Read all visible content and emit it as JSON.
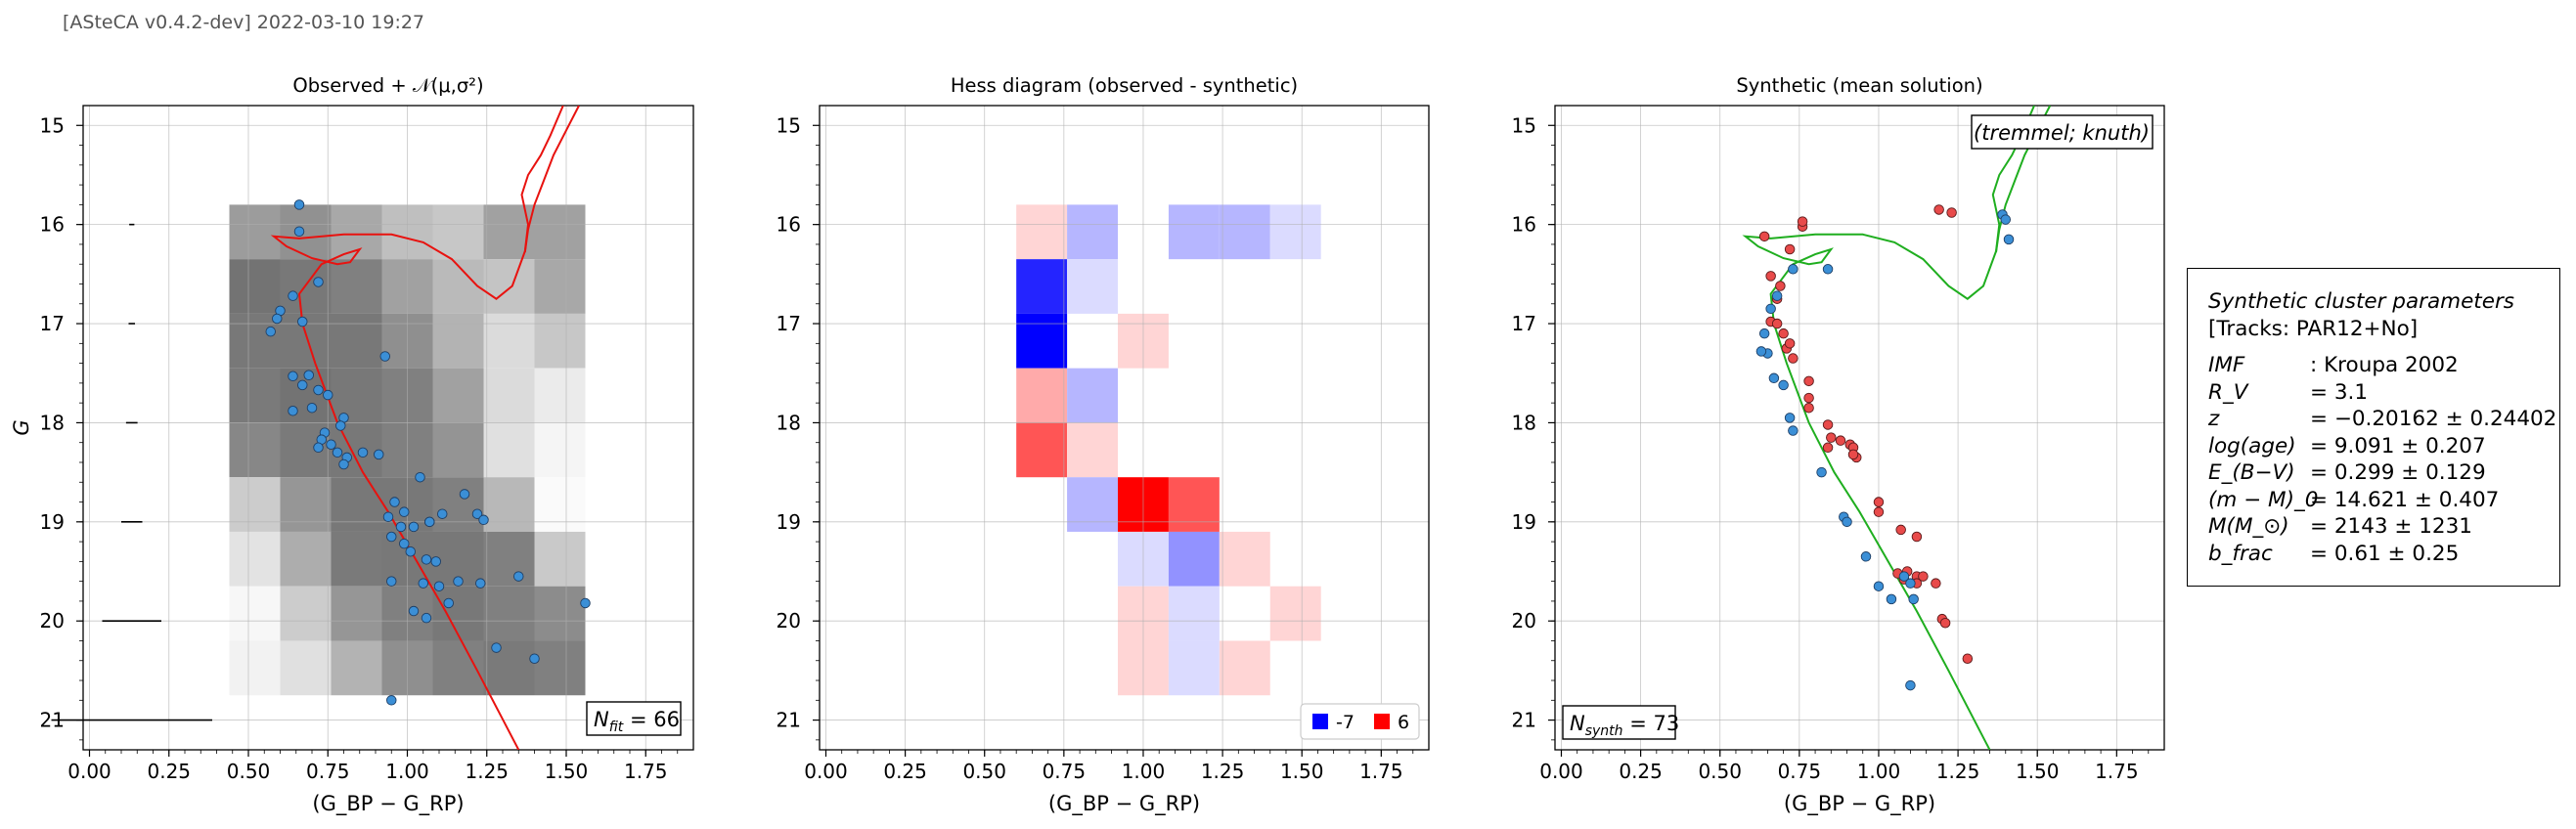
{
  "header": {
    "stamp": "[ASteCA v0.4.2-dev] 2022-03-10 19:27"
  },
  "chart_data": [
    {
      "type": "heatmap",
      "title": "Observed + 𝒩(μ,σ²)",
      "xlabel": "(G_BP − G_RP)",
      "ylabel": "G",
      "xlim": [
        -0.02,
        1.9
      ],
      "ylim": [
        21.3,
        14.8
      ],
      "xticks": [
        "0.00",
        "0.25",
        "0.50",
        "0.75",
        "1.00",
        "1.25",
        "1.50",
        "1.75"
      ],
      "yticks": [
        "15",
        "16",
        "17",
        "18",
        "19",
        "20",
        "21"
      ],
      "grid": true,
      "hess_x_edges": [
        0.44,
        0.6,
        0.76,
        0.92,
        1.08,
        1.24,
        1.4,
        1.56
      ],
      "hess_y_edges": [
        15.8,
        16.35,
        16.9,
        17.45,
        18.0,
        18.55,
        19.1,
        19.65,
        20.2,
        20.75
      ],
      "hess_gray": [
        [
          0.61,
          0.57,
          0.66,
          0.75,
          0.78,
          0.63,
          0.63
        ],
        [
          0.45,
          0.47,
          0.5,
          0.63,
          0.73,
          0.77,
          0.66
        ],
        [
          0.47,
          0.47,
          0.47,
          0.56,
          0.7,
          0.86,
          0.78
        ],
        [
          0.48,
          0.45,
          0.47,
          0.5,
          0.63,
          0.86,
          0.92
        ],
        [
          0.53,
          0.48,
          0.47,
          0.5,
          0.58,
          0.88,
          0.96
        ],
        [
          0.8,
          0.59,
          0.47,
          0.47,
          0.5,
          0.72,
          0.98
        ],
        [
          0.89,
          0.68,
          0.48,
          0.47,
          0.47,
          0.5,
          0.79
        ],
        [
          0.97,
          0.8,
          0.59,
          0.5,
          0.47,
          0.5,
          0.55
        ],
        [
          0.95,
          0.88,
          0.7,
          0.56,
          0.5,
          0.48,
          0.5
        ]
      ],
      "error_bars": [
        {
          "y": 16.0,
          "half_width": 0.005
        },
        {
          "y": 17.0,
          "half_width": 0.007
        },
        {
          "y": 18.0,
          "half_width": 0.015
        },
        {
          "y": 19.0,
          "half_width": 0.03
        },
        {
          "y": 20.0,
          "half_width": 0.09
        },
        {
          "y": 21.0,
          "half_width": 0.25
        }
      ],
      "points": [
        [
          0.66,
          15.8
        ],
        [
          0.66,
          16.07
        ],
        [
          0.57,
          17.08
        ],
        [
          0.6,
          16.87
        ],
        [
          0.59,
          16.95
        ],
        [
          0.72,
          16.58
        ],
        [
          0.64,
          16.72
        ],
        [
          0.67,
          16.98
        ],
        [
          0.64,
          17.53
        ],
        [
          0.69,
          17.52
        ],
        [
          0.67,
          17.62
        ],
        [
          0.72,
          17.67
        ],
        [
          0.75,
          17.72
        ],
        [
          0.7,
          17.85
        ],
        [
          0.64,
          17.88
        ],
        [
          0.8,
          17.95
        ],
        [
          0.79,
          18.03
        ],
        [
          0.74,
          18.1
        ],
        [
          0.73,
          18.17
        ],
        [
          0.76,
          18.22
        ],
        [
          0.72,
          18.25
        ],
        [
          0.78,
          18.3
        ],
        [
          0.81,
          18.35
        ],
        [
          0.8,
          18.42
        ],
        [
          0.86,
          18.3
        ],
        [
          0.91,
          18.32
        ],
        [
          0.93,
          17.33
        ],
        [
          1.04,
          18.55
        ],
        [
          0.94,
          18.95
        ],
        [
          0.96,
          18.8
        ],
        [
          0.99,
          18.9
        ],
        [
          0.98,
          19.05
        ],
        [
          0.95,
          19.15
        ],
        [
          0.99,
          19.22
        ],
        [
          1.07,
          19.0
        ],
        [
          1.11,
          18.92
        ],
        [
          1.18,
          18.72
        ],
        [
          1.22,
          18.92
        ],
        [
          1.24,
          18.98
        ],
        [
          1.01,
          19.3
        ],
        [
          0.95,
          19.6
        ],
        [
          1.09,
          19.4
        ],
        [
          1.06,
          19.38
        ],
        [
          1.05,
          19.62
        ],
        [
          1.1,
          19.65
        ],
        [
          1.16,
          19.6
        ],
        [
          1.23,
          19.62
        ],
        [
          1.02,
          19.9
        ],
        [
          1.06,
          19.97
        ],
        [
          1.13,
          19.82
        ],
        [
          1.35,
          19.55
        ],
        [
          1.28,
          20.27
        ],
        [
          1.4,
          20.38
        ],
        [
          1.56,
          19.82
        ],
        [
          0.95,
          20.8
        ],
        [
          1.07,
          19.0
        ],
        [
          1.02,
          19.05
        ]
      ],
      "points_color": "#3b8fd6",
      "isochrone": [
        [
          1.35,
          21.3
        ],
        [
          1.22,
          20.5
        ],
        [
          1.12,
          19.9
        ],
        [
          1.03,
          19.4
        ],
        [
          0.94,
          18.9
        ],
        [
          0.86,
          18.5
        ],
        [
          0.78,
          18.0
        ],
        [
          0.71,
          17.4
        ],
        [
          0.67,
          17.0
        ],
        [
          0.66,
          16.7
        ],
        [
          0.73,
          16.4
        ],
        [
          0.8,
          16.3
        ],
        [
          0.85,
          16.25
        ],
        [
          0.82,
          16.38
        ],
        [
          0.78,
          16.4
        ],
        [
          0.7,
          16.34
        ],
        [
          0.62,
          16.22
        ],
        [
          0.58,
          16.12
        ],
        [
          0.66,
          16.14
        ],
        [
          0.8,
          16.1
        ],
        [
          0.95,
          16.1
        ],
        [
          1.05,
          16.18
        ],
        [
          1.14,
          16.35
        ],
        [
          1.22,
          16.62
        ],
        [
          1.28,
          16.75
        ],
        [
          1.33,
          16.62
        ],
        [
          1.37,
          16.27
        ],
        [
          1.38,
          16.0
        ],
        [
          1.36,
          15.7
        ],
        [
          1.38,
          15.5
        ],
        [
          1.42,
          15.3
        ],
        [
          1.45,
          15.1
        ],
        [
          1.49,
          14.8
        ]
      ],
      "isochrone2": [
        [
          1.37,
          16.28
        ],
        [
          1.38,
          16.05
        ],
        [
          1.4,
          15.8
        ],
        [
          1.43,
          15.55
        ],
        [
          1.46,
          15.3
        ],
        [
          1.5,
          15.05
        ],
        [
          1.54,
          14.8
        ]
      ],
      "isochrone_color": "#e8120f",
      "annotation": "N_fit = 66",
      "annotation_parts": [
        "N",
        "fit",
        " = 66"
      ]
    },
    {
      "type": "heatmap",
      "title": "Hess diagram (observed - synthetic)",
      "xlabel": "(G_BP − G_RP)",
      "xlim": [
        -0.02,
        1.9
      ],
      "ylim": [
        21.3,
        14.8
      ],
      "xticks": [
        "0.00",
        "0.25",
        "0.50",
        "0.75",
        "1.00",
        "1.25",
        "1.50",
        "1.75"
      ],
      "yticks": [
        "15",
        "16",
        "17",
        "18",
        "19",
        "20",
        "21"
      ],
      "grid": true,
      "x_edges": [
        0.6,
        0.76,
        0.92,
        1.08,
        1.24,
        1.4,
        1.56
      ],
      "y_edges": [
        15.8,
        16.35,
        16.9,
        17.45,
        18.0,
        18.55,
        19.1,
        19.65,
        20.2,
        20.75
      ],
      "values": [
        [
          1,
          -2,
          0,
          -2,
          -2,
          -1
        ],
        [
          -6,
          -1,
          0,
          0,
          0,
          0
        ],
        [
          -7,
          0,
          1,
          0,
          0,
          0
        ],
        [
          2,
          -2,
          0,
          0,
          0,
          0
        ],
        [
          4,
          1,
          0,
          0,
          0,
          0
        ],
        [
          0,
          -2,
          6,
          4,
          0,
          0
        ],
        [
          0,
          0,
          -1,
          -3,
          1,
          0
        ],
        [
          0,
          0,
          1,
          -1,
          0,
          1
        ],
        [
          0,
          0,
          1,
          -1,
          1,
          0
        ]
      ],
      "vmin": -7,
      "vmax": 6,
      "legend": [
        {
          "label": "-7",
          "color": "#0000ff"
        },
        {
          "label": "6",
          "color": "#ff0000"
        }
      ]
    },
    {
      "type": "scatter",
      "title": "Synthetic (mean solution)",
      "xlabel": "(G_BP − G_RP)",
      "xlim": [
        -0.02,
        1.9
      ],
      "ylim": [
        21.3,
        14.8
      ],
      "xticks": [
        "0.00",
        "0.25",
        "0.50",
        "0.75",
        "1.00",
        "1.25",
        "1.50",
        "1.75"
      ],
      "yticks": [
        "15",
        "16",
        "17",
        "18",
        "19",
        "20",
        "21"
      ],
      "grid": true,
      "tag": "(tremmel; knuth)",
      "single_stars": [
        [
          0.73,
          16.45
        ],
        [
          0.84,
          16.45
        ],
        [
          0.68,
          16.72
        ],
        [
          0.66,
          16.85
        ],
        [
          0.64,
          17.1
        ],
        [
          0.65,
          17.3
        ],
        [
          0.63,
          17.28
        ],
        [
          0.67,
          17.55
        ],
        [
          0.7,
          17.62
        ],
        [
          0.72,
          17.95
        ],
        [
          0.73,
          18.08
        ],
        [
          0.82,
          18.5
        ],
        [
          0.89,
          18.95
        ],
        [
          0.9,
          19.0
        ],
        [
          0.96,
          19.35
        ],
        [
          1.0,
          19.65
        ],
        [
          1.04,
          19.78
        ],
        [
          1.1,
          19.62
        ],
        [
          1.11,
          19.78
        ],
        [
          1.08,
          19.55
        ],
        [
          1.1,
          20.65
        ],
        [
          1.39,
          15.9
        ],
        [
          1.4,
          15.95
        ],
        [
          1.41,
          16.15
        ]
      ],
      "binary_stars": [
        [
          0.76,
          16.02
        ],
        [
          0.76,
          15.97
        ],
        [
          0.64,
          16.12
        ],
        [
          0.72,
          16.25
        ],
        [
          0.66,
          16.52
        ],
        [
          0.69,
          16.62
        ],
        [
          0.68,
          16.75
        ],
        [
          0.66,
          16.98
        ],
        [
          0.68,
          17.0
        ],
        [
          0.7,
          17.1
        ],
        [
          0.71,
          17.25
        ],
        [
          0.72,
          17.2
        ],
        [
          0.73,
          17.35
        ],
        [
          0.78,
          17.58
        ],
        [
          0.78,
          17.75
        ],
        [
          0.78,
          17.85
        ],
        [
          0.84,
          18.02
        ],
        [
          0.85,
          18.15
        ],
        [
          0.84,
          18.25
        ],
        [
          0.88,
          18.18
        ],
        [
          0.91,
          18.22
        ],
        [
          0.92,
          18.25
        ],
        [
          0.93,
          18.35
        ],
        [
          0.92,
          18.32
        ],
        [
          1.0,
          18.8
        ],
        [
          1.0,
          18.9
        ],
        [
          1.07,
          19.08
        ],
        [
          1.12,
          19.15
        ],
        [
          1.06,
          19.52
        ],
        [
          1.09,
          19.5
        ],
        [
          1.12,
          19.55
        ],
        [
          1.14,
          19.55
        ],
        [
          1.12,
          19.62
        ],
        [
          1.08,
          19.58
        ],
        [
          1.18,
          19.62
        ],
        [
          1.2,
          19.98
        ],
        [
          1.21,
          20.02
        ],
        [
          1.19,
          15.85
        ],
        [
          1.23,
          15.88
        ],
        [
          1.28,
          20.38
        ]
      ],
      "single_color": "#3b8fd6",
      "binary_color": "#e84a4a",
      "isochrone": [
        [
          1.35,
          21.3
        ],
        [
          1.22,
          20.5
        ],
        [
          1.12,
          19.9
        ],
        [
          1.03,
          19.4
        ],
        [
          0.94,
          18.9
        ],
        [
          0.86,
          18.5
        ],
        [
          0.78,
          18.0
        ],
        [
          0.71,
          17.4
        ],
        [
          0.67,
          17.0
        ],
        [
          0.66,
          16.7
        ],
        [
          0.73,
          16.4
        ],
        [
          0.8,
          16.3
        ],
        [
          0.85,
          16.25
        ],
        [
          0.82,
          16.38
        ],
        [
          0.78,
          16.4
        ],
        [
          0.7,
          16.34
        ],
        [
          0.62,
          16.22
        ],
        [
          0.58,
          16.12
        ],
        [
          0.66,
          16.14
        ],
        [
          0.8,
          16.1
        ],
        [
          0.95,
          16.1
        ],
        [
          1.05,
          16.18
        ],
        [
          1.14,
          16.35
        ],
        [
          1.22,
          16.62
        ],
        [
          1.28,
          16.75
        ],
        [
          1.33,
          16.62
        ],
        [
          1.37,
          16.27
        ],
        [
          1.38,
          16.0
        ],
        [
          1.36,
          15.7
        ],
        [
          1.38,
          15.5
        ],
        [
          1.42,
          15.3
        ],
        [
          1.45,
          15.1
        ],
        [
          1.49,
          14.8
        ]
      ],
      "isochrone2": [
        [
          1.37,
          16.28
        ],
        [
          1.38,
          16.05
        ],
        [
          1.4,
          15.8
        ],
        [
          1.43,
          15.55
        ],
        [
          1.46,
          15.3
        ],
        [
          1.5,
          15.05
        ],
        [
          1.54,
          14.8
        ]
      ],
      "isochrone_color": "#1fae1f",
      "annotation": "N_synth = 73",
      "annotation_parts": [
        "N",
        "synth",
        " = 73"
      ]
    }
  ],
  "params": {
    "title": "Synthetic cluster parameters",
    "tracks": "[Tracks: PAR12+No]",
    "rows": [
      {
        "label": "IMF",
        "value": ": Kroupa 2002"
      },
      {
        "label": "R_V",
        "value": "=  3.1"
      },
      {
        "label": "z",
        "value": "=  −0.20162 ± 0.24402"
      },
      {
        "label": "log(age)",
        "value": "=  9.091 ± 0.207"
      },
      {
        "label": "E_(B−V)",
        "value": "=  0.299 ± 0.129"
      },
      {
        "label": "(m − M)_0",
        "value": "=  14.621 ± 0.407"
      },
      {
        "label": "M(M_⊙)",
        "value": "=  2143 ± 1231"
      },
      {
        "label": "b_frac",
        "value": "=  0.61 ± 0.25"
      }
    ]
  }
}
